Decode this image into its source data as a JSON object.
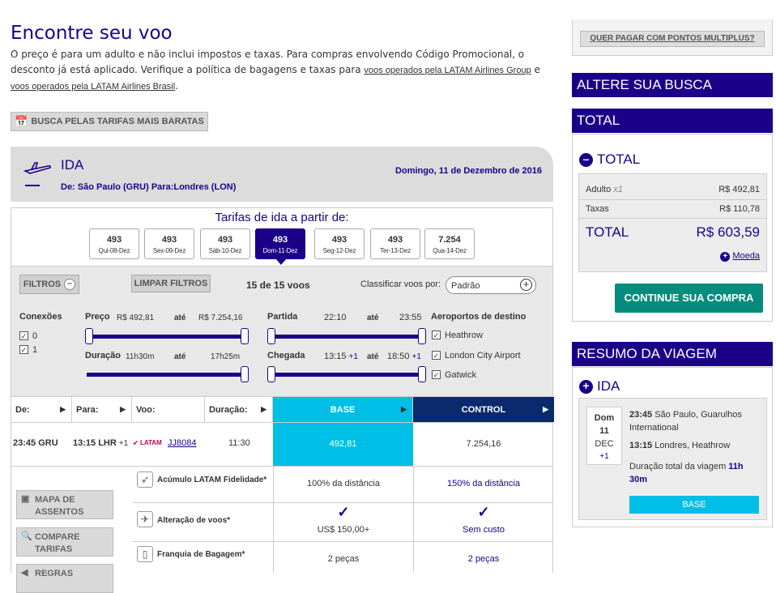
{
  "header": {
    "title": "Encontre seu voo",
    "intro_1": "O preço é para um adulto e não inclui impostos e taxas. Para compras envolvendo Código Promocional, o desconto já está aplicado. Verifique a política de bagagens e taxas para ",
    "link_group": "voos operados pela LATAM Airlines Group",
    "intro_2": " e ",
    "link_brasil": "voos operados pela LATAM Airlines Brasil",
    "intro_3": ".",
    "cheapest_button": "BUSCA PELAS TARIFAS MAIS BARATAS"
  },
  "ida": {
    "label": "IDA",
    "route": "De: São Paulo (GRU) Para:Londres (LON)",
    "date": "Domingo, 11 de Dezembro de 2016"
  },
  "fares": {
    "title": "Tarifas de ida a partir de:",
    "days": [
      {
        "price": "493",
        "date": "Qui-08-Dez",
        "selected": false
      },
      {
        "price": "493",
        "date": "Sex-09-Dez",
        "selected": false
      },
      {
        "price": "493",
        "date": "Sáb-10-Dez",
        "selected": false
      },
      {
        "price": "493",
        "date": "Dom-11-Dez",
        "selected": true
      },
      {
        "price": "493",
        "date": "Seg-12-Dez",
        "selected": false
      },
      {
        "price": "493",
        "date": "Ter-13-Dez",
        "selected": false
      },
      {
        "price": "7.254",
        "date": "Qua-14-Dez",
        "selected": false
      }
    ]
  },
  "filters": {
    "filters_button": "FILTROS",
    "clear_button": "LIMPAR FILTROS",
    "count": "15 de 15 voos",
    "sort_label": "Classificar voos por:",
    "sort_value": "Padrão",
    "connections_label": "Conexões",
    "connections": [
      "0",
      "1"
    ],
    "price_label": "Preço",
    "price_min": "R$ 492,81",
    "price_to": "até",
    "price_max": "R$ 7.254,16",
    "duration_label": "Duração",
    "duration_min": "11h30m",
    "duration_to": "até",
    "duration_max": "17h25m",
    "departure_label": "Partida",
    "departure_min": "22:10",
    "departure_to": "até",
    "departure_max": "23:55",
    "arrival_label": "Chegada",
    "arrival_min": "13:15",
    "arrival_min_plus": "+1",
    "arrival_to": "até",
    "arrival_max": "18:50",
    "arrival_max_plus": "+1",
    "airports_label": "Aeroportos de destino",
    "airports": [
      "Heathrow",
      "London City Airport",
      "Gatwick"
    ]
  },
  "table": {
    "headers": {
      "from": "De:",
      "to": "Para:",
      "flight": "Voo:",
      "duration": "Duração:",
      "base": "BASE",
      "control": "CONTROL"
    },
    "row": {
      "from": "23:45 GRU",
      "to": "13:15 LHR",
      "to_plus": "+1",
      "airline": "LATAM",
      "flight": "JJ8084",
      "duration": "11:30",
      "base_price": "492,81",
      "control_price": "7.254,16"
    },
    "side_buttons": [
      "MAPA DE ASSENTOS",
      "COMPARE TARIFAS",
      "REGRAS"
    ],
    "details": [
      {
        "label": "Acúmulo LATAM Fidelidade*",
        "base": "100% da distância",
        "control": "150% da distância"
      },
      {
        "label": "Alteração de voos*",
        "base": "US$ 150,00+",
        "control": "Sem custo"
      },
      {
        "label": "Franquia de Bagagem*",
        "base": "2 peças",
        "control": "2 peças"
      }
    ]
  },
  "sidebar": {
    "multiplus": "QUER PAGAR COM PONTOS MULTIPLUS?",
    "change_search": "ALTERE SUA BUSCA",
    "total_header": "TOTAL",
    "total_title": "TOTAL",
    "adult_label": "Adulto",
    "adult_count": "x1",
    "adult_value": "R$ 492,81",
    "taxes_label": "Taxas",
    "taxes_value": "R$ 110,78",
    "total_label": "TOTAL",
    "total_value": "R$ 603,59",
    "currency_link": "Moeda",
    "continue_button": "CONTINUE SUA COMPRA",
    "summary_header": "RESUMO DA VIAGEM",
    "summary_ida": "IDA",
    "summary_day": "Dom",
    "summary_date": "11",
    "summary_month": "DEC",
    "summary_plus": "+1",
    "summary_dep_time": "23:45",
    "summary_dep_place": " São Paulo, Guarulhos International",
    "summary_arr_time": "13:15",
    "summary_arr_place": " Londres, Heathrow",
    "summary_duration_label": "Duração total da viagem ",
    "summary_duration": "11h 30m",
    "summary_fare": "BASE"
  },
  "colors": {
    "brand": "#1b0088",
    "base": "#00bfe6",
    "control": "#0b2a6d",
    "continue": "#058c7c"
  }
}
